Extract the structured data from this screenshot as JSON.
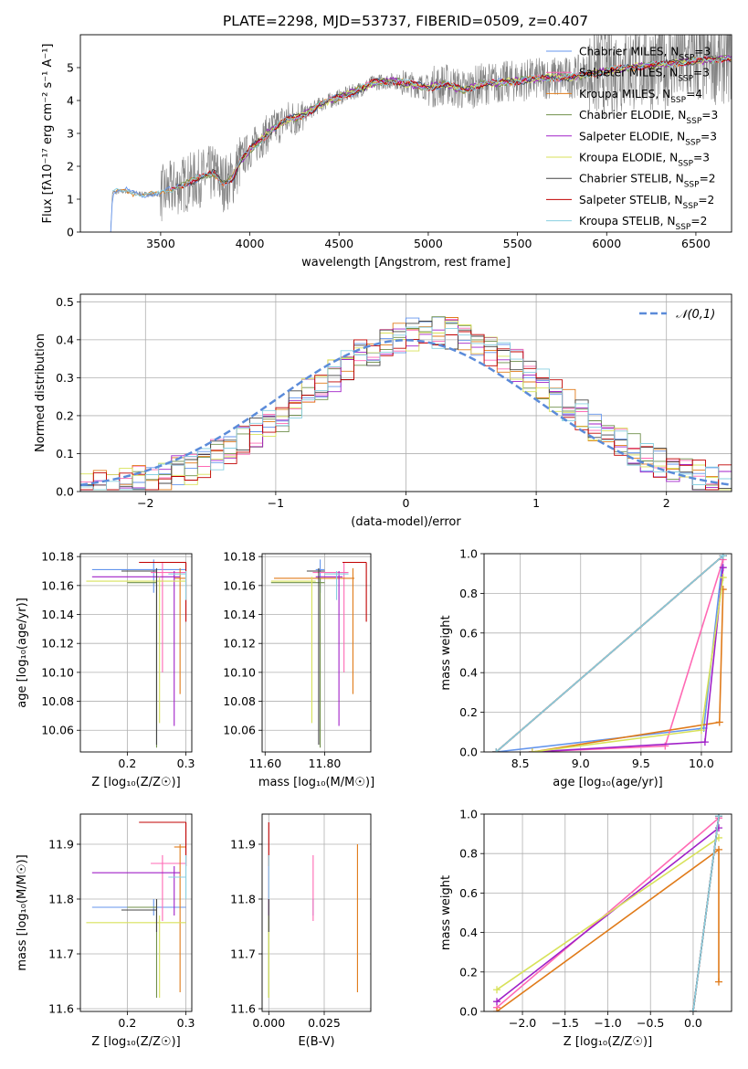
{
  "figure": {
    "title": "PLATE=2298, MJD=53737, FIBERID=0509, z=0.407"
  },
  "series_colors": {
    "Chabrier MILES": "#6495ed",
    "Salpeter MILES": "#ff69b4",
    "Kroupa MILES": "#e07b1a",
    "Chabrier ELODIE": "#6f8f4a",
    "Salpeter ELODIE": "#a020c8",
    "Kroupa ELODIE": "#d8e25a",
    "Chabrier STELIB": "#444444",
    "Salpeter STELIB": "#c00000",
    "Kroupa STELIB": "#87cfe0",
    "data": "#808080",
    "normal": "#5b8bd9"
  },
  "legend_spectrum": [
    {
      "model": "Chabrier MILES",
      "n": "3"
    },
    {
      "model": "Salpeter MILES",
      "n": "3"
    },
    {
      "model": "Kroupa MILES",
      "n": "4"
    },
    {
      "model": "Chabrier ELODIE",
      "n": "3"
    },
    {
      "model": "Salpeter ELODIE",
      "n": "3"
    },
    {
      "model": "Kroupa ELODIE",
      "n": "3"
    },
    {
      "model": "Chabrier STELIB",
      "n": "2"
    },
    {
      "model": "Salpeter STELIB",
      "n": "2"
    },
    {
      "model": "Kroupa STELIB",
      "n": "2"
    }
  ],
  "chart_data": [
    {
      "id": "spectrum",
      "type": "line",
      "xlabel": "wavelength [Angstrom, rest frame]",
      "ylabel": "Flux [fλ10⁻¹⁷ erg cm⁻² s⁻¹ A⁻¹]",
      "xlim": [
        3050,
        6700
      ],
      "ylim": [
        0,
        6
      ],
      "xticks": [
        3500,
        4000,
        4500,
        5000,
        5500,
        6000,
        6500
      ],
      "yticks": [
        0,
        1,
        2,
        3,
        4,
        5
      ],
      "grid": false,
      "legend": "upper right",
      "continuum_points": [
        [
          3220,
          0
        ],
        [
          3230,
          1.2
        ],
        [
          3300,
          1.25
        ],
        [
          3400,
          1.15
        ],
        [
          3500,
          1.15
        ],
        [
          3600,
          1.4
        ],
        [
          3700,
          1.6
        ],
        [
          3800,
          1.8
        ],
        [
          3850,
          1.5
        ],
        [
          3900,
          1.6
        ],
        [
          3950,
          2.2
        ],
        [
          4000,
          2.5
        ],
        [
          4100,
          3.0
        ],
        [
          4200,
          3.4
        ],
        [
          4300,
          3.55
        ],
        [
          4400,
          3.9
        ],
        [
          4500,
          4.1
        ],
        [
          4600,
          4.3
        ],
        [
          4700,
          4.55
        ],
        [
          4800,
          4.6
        ],
        [
          4900,
          4.5
        ],
        [
          5000,
          4.4
        ],
        [
          5100,
          4.5
        ],
        [
          5200,
          4.3
        ],
        [
          5300,
          4.5
        ],
        [
          5400,
          4.55
        ],
        [
          5500,
          4.6
        ],
        [
          5600,
          4.65
        ],
        [
          5700,
          4.7
        ],
        [
          5800,
          4.7
        ],
        [
          5900,
          4.8
        ],
        [
          6000,
          4.9
        ],
        [
          6100,
          5.0
        ],
        [
          6200,
          5.05
        ],
        [
          6300,
          5.1
        ],
        [
          6400,
          5.15
        ],
        [
          6500,
          5.2
        ],
        [
          6600,
          5.25
        ],
        [
          6700,
          5.3
        ]
      ]
    },
    {
      "id": "residuals",
      "type": "line",
      "xlabel": "(data-model)/error",
      "ylabel": "Normed distribution",
      "xlim": [
        -2.5,
        2.5
      ],
      "ylim": [
        0,
        0.52
      ],
      "xticks": [
        -2,
        -1,
        0,
        1,
        2
      ],
      "yticks": [
        0.0,
        0.1,
        0.2,
        0.3,
        0.4,
        0.5
      ],
      "grid": true,
      "legend": "upper right",
      "normal_label": "𝒩(0,1)",
      "bin_width": 0.1
    },
    {
      "id": "age-vs-Z",
      "type": "scatter",
      "xlabel": "Z [log₁₀(Z/Z☉)]",
      "ylabel": "age  [log₁₀(age/yr)]",
      "xlim": [
        0.12,
        0.31
      ],
      "ylim": [
        10.045,
        10.182
      ],
      "xticks": [
        0.2,
        0.3
      ],
      "yticks": [
        10.06,
        10.08,
        10.1,
        10.12,
        10.14,
        10.16,
        10.18
      ],
      "grid": true
    },
    {
      "id": "age-vs-mass",
      "type": "scatter",
      "xlabel": "mass [log₁₀(M/M☉)]",
      "ylabel": "",
      "xlim": [
        11.59,
        11.955
      ],
      "ylim": [
        10.045,
        10.182
      ],
      "xticks": [
        11.6,
        11.8
      ],
      "yticks": [
        10.06,
        10.08,
        10.1,
        10.12,
        10.14,
        10.16,
        10.18
      ],
      "grid": true
    },
    {
      "id": "weight-vs-age",
      "type": "line",
      "xlabel": "age  [log₁₀(age/yr)]",
      "ylabel": "mass weight",
      "xlim": [
        8.2,
        10.25
      ],
      "ylim": [
        0,
        1
      ],
      "xticks": [
        8.5,
        9.0,
        9.5,
        10.0
      ],
      "yticks": [
        0.0,
        0.2,
        0.4,
        0.6,
        0.8,
        1.0
      ],
      "grid": true
    },
    {
      "id": "mass-vs-Z",
      "type": "scatter",
      "xlabel": "Z [log₁₀(Z/Z☉)]",
      "ylabel": "mass [log₁₀(M/M☉)]",
      "xlim": [
        0.12,
        0.31
      ],
      "ylim": [
        11.595,
        11.955
      ],
      "xticks": [
        0.2,
        0.3
      ],
      "yticks": [
        11.6,
        11.7,
        11.8,
        11.9
      ],
      "grid": true
    },
    {
      "id": "mass-vs-ebv",
      "type": "scatter",
      "xlabel": "E(B-V)",
      "ylabel": "",
      "xlim": [
        -0.003,
        0.046
      ],
      "ylim": [
        11.595,
        11.955
      ],
      "xticks": [
        0.0,
        0.025
      ],
      "yticks": [
        11.6,
        11.7,
        11.8,
        11.9
      ],
      "grid": true
    },
    {
      "id": "weight-vs-Z",
      "type": "line",
      "xlabel": "Z [log₁₀(Z/Z☉)]",
      "ylabel": "mass weight",
      "xlim": [
        -2.45,
        0.45
      ],
      "ylim": [
        0,
        1
      ],
      "xticks": [
        -2.0,
        -1.5,
        -1.0,
        -0.5,
        0.0
      ],
      "yticks": [
        0.0,
        0.2,
        0.4,
        0.6,
        0.8,
        1.0
      ],
      "grid": true
    }
  ],
  "fits": [
    {
      "model": "Chabrier MILES",
      "age": 10.171,
      "age_lo": 10.155,
      "age_hi": 10.178,
      "Z": 0.245,
      "Z_lo": 0.14,
      "Z_hi": 0.3,
      "mass": 11.785,
      "mass_lo": 11.77,
      "mass_hi": 11.8,
      "ebv": 0.02,
      "ebv_lo": 0.0,
      "ebv_hi": 0.0,
      "sfh_age": [
        8.3,
        10.02,
        10.18
      ],
      "sfh_w": [
        0.0,
        0.12,
        0.99
      ],
      "sfh_Z": [
        0.0,
        0.0,
        0.3
      ],
      "sfh_Zw": [
        0.0,
        0.0,
        0.99
      ]
    },
    {
      "model": "Salpeter MILES",
      "age": 10.169,
      "age_lo": 10.1,
      "age_hi": 10.176,
      "Z": 0.26,
      "Z_lo": 0.24,
      "Z_hi": 0.3,
      "mass": 11.865,
      "mass_lo": 11.76,
      "mass_hi": 11.88,
      "ebv": 0.02,
      "ebv_lo": 0.0,
      "ebv_hi": 0.0,
      "sfh_age": [
        8.6,
        9.7,
        10.18
      ],
      "sfh_w": [
        0.0,
        0.03,
        0.97
      ],
      "sfh_Z": [
        -2.3,
        0.3
      ],
      "sfh_Zw": [
        0.02,
        0.98
      ]
    },
    {
      "model": "Kroupa MILES",
      "age": 10.165,
      "age_lo": 10.085,
      "age_hi": 10.172,
      "Z": 0.29,
      "Z_lo": 0.28,
      "Z_hi": 0.3,
      "mass": 11.895,
      "mass_lo": 11.63,
      "mass_hi": 11.9,
      "ebv": 0.04,
      "ebv_lo": 0.0,
      "ebv_hi": 0.0,
      "sfh_age": [
        8.6,
        10.15,
        10.18
      ],
      "sfh_w": [
        0.0,
        0.15,
        0.82
      ],
      "sfh_Z": [
        -2.3,
        0.3,
        0.3
      ],
      "sfh_Zw": [
        0.0,
        0.82,
        0.15
      ]
    },
    {
      "model": "Chabrier ELODIE",
      "age": 10.162,
      "age_lo": 10.048,
      "age_hi": 10.165,
      "Z": 0.25,
      "Z_lo": 0.2,
      "Z_hi": 0.25,
      "mass": 11.785,
      "mass_lo": 11.62,
      "mass_hi": 11.8,
      "ebv": 0.0,
      "ebv_lo": 0.0,
      "ebv_hi": 0.0,
      "sfh_age": [
        8.3,
        10.18
      ],
      "sfh_w": [
        0.0,
        0.99
      ],
      "sfh_Z": [
        0.0,
        0.3
      ],
      "sfh_Zw": [
        0.0,
        0.99
      ]
    },
    {
      "model": "Salpeter ELODIE",
      "age": 10.166,
      "age_lo": 10.063,
      "age_hi": 10.17,
      "Z": 0.28,
      "Z_lo": 0.14,
      "Z_hi": 0.29,
      "mass": 11.848,
      "mass_lo": 11.77,
      "mass_hi": 11.86,
      "ebv": 0.0,
      "ebv_lo": 0.0,
      "ebv_hi": 0.0,
      "sfh_age": [
        8.6,
        10.03,
        10.18
      ],
      "sfh_w": [
        0.0,
        0.05,
        0.93
      ],
      "sfh_Z": [
        -2.3,
        0.3
      ],
      "sfh_Zw": [
        0.05,
        0.93
      ]
    },
    {
      "model": "Kroupa ELODIE",
      "age": 10.163,
      "age_lo": 10.065,
      "age_hi": 10.166,
      "Z": 0.255,
      "Z_lo": 0.13,
      "Z_hi": 0.3,
      "mass": 11.757,
      "mass_lo": 11.62,
      "mass_hi": 11.77,
      "ebv": 0.0,
      "ebv_lo": 0.0,
      "ebv_hi": 0.0,
      "sfh_age": [
        8.6,
        10.0,
        10.18
      ],
      "sfh_w": [
        0.0,
        0.11,
        0.88
      ],
      "sfh_Z": [
        -2.3,
        0.3
      ],
      "sfh_Zw": [
        0.11,
        0.88
      ]
    },
    {
      "model": "Chabrier STELIB",
      "age": 10.17,
      "age_lo": 10.05,
      "age_hi": 10.172,
      "Z": 0.25,
      "Z_lo": 0.19,
      "Z_hi": 0.25,
      "mass": 11.78,
      "mass_lo": 11.74,
      "mass_hi": 11.8,
      "ebv": 0.0,
      "ebv_lo": 0.0,
      "ebv_hi": 0.0,
      "sfh_age": [
        8.3,
        10.18
      ],
      "sfh_w": [
        0.0,
        0.99
      ],
      "sfh_Z": [
        0.0,
        0.3
      ],
      "sfh_Zw": [
        0.0,
        0.99
      ]
    },
    {
      "model": "Salpeter STELIB",
      "age": 10.176,
      "age_lo": 10.135,
      "age_hi": 10.176,
      "Z": 0.3,
      "Z_lo": 0.22,
      "Z_hi": 0.3,
      "mass": 11.94,
      "mass_lo": 11.86,
      "mass_hi": 11.94,
      "ebv": 0.0,
      "ebv_lo": 0.0,
      "ebv_hi": 0.0,
      "sfh_age": [
        8.3,
        10.18
      ],
      "sfh_w": [
        0.0,
        0.99
      ],
      "sfh_Z": [
        0.0,
        0.3
      ],
      "sfh_Zw": [
        0.0,
        0.99
      ]
    },
    {
      "model": "Kroupa STELIB",
      "age": 10.168,
      "age_lo": 10.15,
      "age_hi": 10.17,
      "Z": 0.3,
      "Z_lo": 0.27,
      "Z_hi": 0.3,
      "mass": 11.84,
      "mass_lo": 11.8,
      "mass_hi": 11.88,
      "ebv": 0.0,
      "ebv_lo": 0.0,
      "ebv_hi": 0.0,
      "sfh_age": [
        8.3,
        10.18
      ],
      "sfh_w": [
        0.0,
        0.99
      ],
      "sfh_Z": [
        0.0,
        0.3
      ],
      "sfh_Zw": [
        0.0,
        0.99
      ]
    }
  ]
}
